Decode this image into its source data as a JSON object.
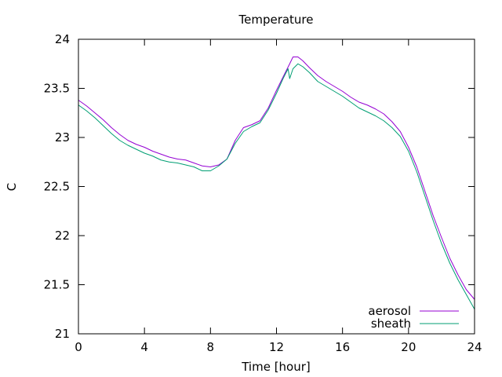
{
  "chart_data": {
    "type": "line",
    "title": "Temperature",
    "xlabel": "Time [hour]",
    "ylabel": "C",
    "xlim": [
      0,
      24
    ],
    "ylim": [
      21,
      24
    ],
    "xticks": [
      0,
      4,
      8,
      12,
      16,
      20,
      24
    ],
    "yticks": [
      21,
      21.5,
      22,
      22.5,
      23,
      23.5,
      24
    ],
    "grid": false,
    "legend_position": "bottom-right",
    "series": [
      {
        "name": "aerosol",
        "color": "#9400d3",
        "x": [
          0,
          0.5,
          1,
          1.5,
          2,
          2.5,
          3,
          3.5,
          4,
          4.5,
          5,
          5.5,
          6,
          6.5,
          7,
          7.5,
          8,
          8.5,
          9,
          9.5,
          10,
          10.5,
          11,
          11.5,
          12,
          12.5,
          12.8,
          13,
          13.3,
          13.6,
          14,
          14.5,
          15,
          15.5,
          16,
          16.5,
          17,
          17.5,
          18,
          18.5,
          19,
          19.5,
          20,
          20.5,
          21,
          21.5,
          22,
          22.5,
          23,
          23.5,
          24
        ],
        "y": [
          23.38,
          23.32,
          23.25,
          23.18,
          23.1,
          23.03,
          22.97,
          22.93,
          22.9,
          22.86,
          22.83,
          22.8,
          22.78,
          22.77,
          22.74,
          22.71,
          22.7,
          22.72,
          22.78,
          22.97,
          23.1,
          23.13,
          23.17,
          23.3,
          23.48,
          23.65,
          23.75,
          23.82,
          23.82,
          23.78,
          23.71,
          23.63,
          23.57,
          23.52,
          23.47,
          23.41,
          23.36,
          23.33,
          23.29,
          23.24,
          23.16,
          23.06,
          22.9,
          22.7,
          22.45,
          22.2,
          21.98,
          21.77,
          21.6,
          21.45,
          21.35
        ]
      },
      {
        "name": "sheath",
        "color": "#009e73",
        "x": [
          0,
          0.5,
          1,
          1.5,
          2,
          2.5,
          3,
          3.5,
          4,
          4.5,
          5,
          5.5,
          6,
          6.5,
          7,
          7.5,
          8,
          8.5,
          9,
          9.5,
          10,
          10.5,
          11,
          11.5,
          12,
          12.4,
          12.7,
          12.8,
          13,
          13.3,
          13.6,
          14,
          14.5,
          15,
          15.5,
          16,
          16.5,
          17,
          17.5,
          18,
          18.5,
          19,
          19.5,
          20,
          20.5,
          21,
          21.5,
          22,
          22.5,
          23,
          23.5,
          24
        ],
        "y": [
          23.33,
          23.27,
          23.2,
          23.12,
          23.04,
          22.97,
          22.92,
          22.88,
          22.84,
          22.81,
          22.77,
          22.75,
          22.74,
          22.72,
          22.7,
          22.66,
          22.66,
          22.71,
          22.78,
          22.94,
          23.06,
          23.11,
          23.15,
          23.28,
          23.45,
          23.6,
          23.7,
          23.6,
          23.7,
          23.75,
          23.72,
          23.66,
          23.57,
          23.52,
          23.47,
          23.42,
          23.36,
          23.3,
          23.26,
          23.22,
          23.17,
          23.1,
          23.01,
          22.86,
          22.65,
          22.4,
          22.15,
          21.92,
          21.72,
          21.55,
          21.4,
          21.25
        ]
      }
    ]
  }
}
